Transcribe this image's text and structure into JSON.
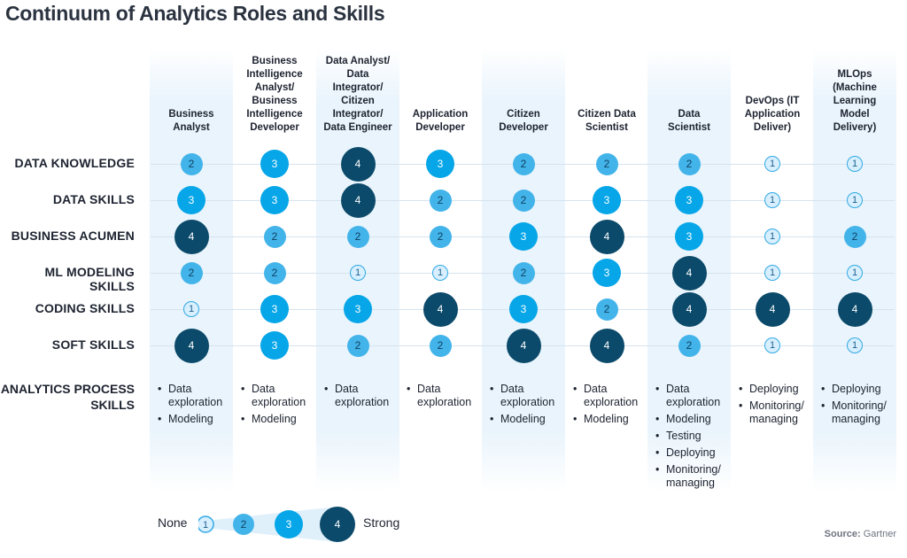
{
  "title": "Continuum of Analytics Roles and Skills",
  "roles": [
    "Business Analyst",
    "Business Intelligence Analyst/ Business Intelligence Developer",
    "Data Analyst/ Data Integrator/ Citizen Integrator/ Data Engineer",
    "Application Developer",
    "Citizen Developer",
    "Citizen Data Scientist",
    "Data Scientist",
    "DevOps (IT Application Deliver)",
    "MLOps (Machine Learning Model Delivery)"
  ],
  "role_lines": [
    [
      "Business",
      "Analyst"
    ],
    [
      "Business",
      "Intelligence",
      "Analyst/",
      "Business",
      "Intelligence",
      "Developer"
    ],
    [
      "Data Analyst/",
      "Data",
      "Integrator/",
      "Citizen",
      "Integrator/",
      "Data Engineer"
    ],
    [
      "Application",
      "Developer"
    ],
    [
      "Citizen",
      "Developer"
    ],
    [
      "Citizen Data",
      "Scientist"
    ],
    [
      "Data",
      "Scientist"
    ],
    [
      "DevOps (IT",
      "Application",
      "Deliver)"
    ],
    [
      "MLOps",
      "(Machine",
      "Learning",
      "Model",
      "Delivery)"
    ]
  ],
  "skills": [
    "DATA KNOWLEDGE",
    "DATA SKILLS",
    "BUSINESS ACUMEN",
    "ML MODELING SKILLS",
    "CODING SKILLS",
    "SOFT SKILLS"
  ],
  "levels": [
    [
      2,
      3,
      4,
      3,
      2,
      2,
      2,
      1,
      1
    ],
    [
      3,
      3,
      4,
      2,
      2,
      3,
      3,
      1,
      1
    ],
    [
      4,
      2,
      2,
      2,
      3,
      4,
      3,
      1,
      2
    ],
    [
      2,
      2,
      1,
      1,
      2,
      3,
      4,
      1,
      1
    ],
    [
      1,
      3,
      3,
      4,
      3,
      2,
      4,
      4,
      4
    ],
    [
      4,
      3,
      2,
      2,
      4,
      4,
      2,
      1,
      1
    ]
  ],
  "process_label": "ANALYTICS PROCESS SKILLS",
  "process_skills": [
    [
      "Data exploration",
      "Modeling"
    ],
    [
      "Data exploration",
      "Modeling"
    ],
    [
      "Data exploration"
    ],
    [
      "Data exploration"
    ],
    [
      "Data exploration",
      "Modeling"
    ],
    [
      "Data exploration",
      "Modeling"
    ],
    [
      "Data exploration",
      "Modeling",
      "Testing",
      "Deploying",
      "Monitoring/ managing"
    ],
    [
      "Deploying",
      "Monitoring/ managing"
    ],
    [
      "Deploying",
      "Monitoring/ managing"
    ]
  ],
  "legend": {
    "none_label": "None",
    "strong_label": "Strong",
    "levels": [
      "1",
      "2",
      "3",
      "4"
    ]
  },
  "source": {
    "prefix": "Source:",
    "name": "Gartner"
  },
  "colors": {
    "level1": "#d7efff",
    "level2": "#42b4ea",
    "level3": "#06a6e8",
    "level4": "#0b4a6a",
    "band": "#e9f4fc"
  }
}
